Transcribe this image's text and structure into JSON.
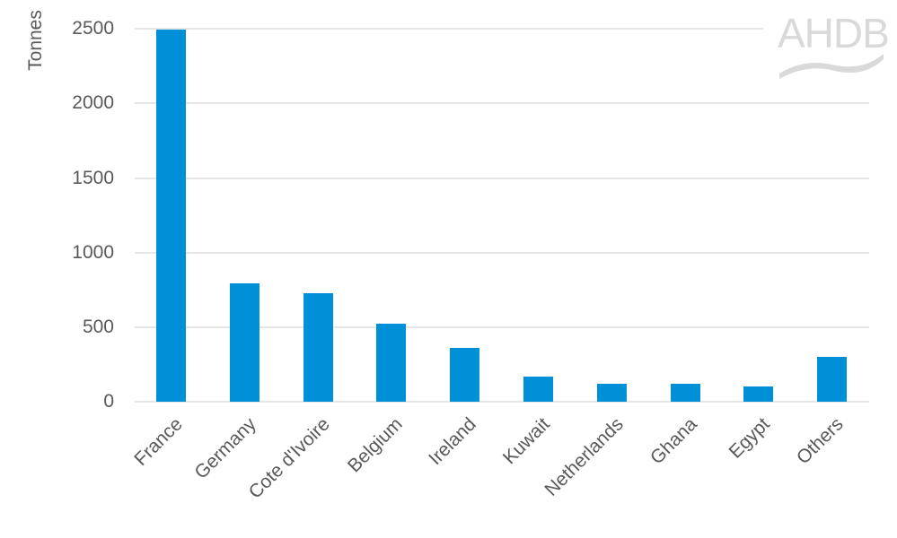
{
  "chart_data": {
    "type": "bar",
    "title": "",
    "xlabel": "",
    "ylabel": "Tonnes",
    "ylim": [
      0,
      2500
    ],
    "yticks": [
      0,
      500,
      1000,
      1500,
      2000,
      2500
    ],
    "grid": true,
    "legend": null,
    "bar_color": "#0090d7",
    "categories": [
      "France",
      "Germany",
      "Cote d'Ivoire",
      "Belgium",
      "Ireland",
      "Kuwait",
      "Netherlands",
      "Ghana",
      "Egypt",
      "Others"
    ],
    "values": [
      2495,
      795,
      725,
      520,
      360,
      170,
      120,
      120,
      100,
      300
    ]
  },
  "labels": {
    "ylabel": "Tonnes",
    "yticks": [
      "0",
      "500",
      "1000",
      "1500",
      "2000",
      "2500"
    ],
    "categories": [
      "France",
      "Germany",
      "Cote d'Ivoire",
      "Belgium",
      "Ireland",
      "Kuwait",
      "Netherlands",
      "Ghana",
      "Egypt",
      "Others"
    ]
  },
  "logo": {
    "text": "AHDB"
  }
}
